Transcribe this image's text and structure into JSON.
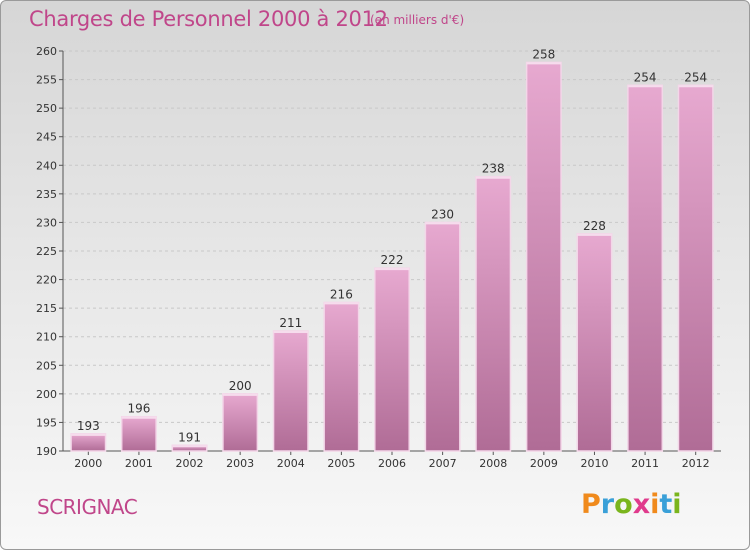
{
  "title": "Charges de Personnel 2000 à 2012",
  "subtitle": "(en milliers d'€)",
  "commune": "SCRIGNAC",
  "logo": {
    "letters": [
      "P",
      "r",
      "o",
      "x",
      "i",
      "t",
      "i"
    ],
    "colors": [
      "#f08a1c",
      "#3aa0d8",
      "#7ab51d",
      "#e03a8c",
      "#f08a1c",
      "#3aa0d8",
      "#7ab51d"
    ]
  },
  "colors": {
    "bar": "#d58fba",
    "accent": "#c0468a"
  },
  "chart_data": {
    "type": "bar",
    "title": "Charges de Personnel 2000 à 2012",
    "subtitle": "(en milliers d'€)",
    "categories": [
      "2000",
      "2001",
      "2002",
      "2003",
      "2004",
      "2005",
      "2006",
      "2007",
      "2008",
      "2009",
      "2010",
      "2011",
      "2012"
    ],
    "values": [
      193,
      196,
      191,
      200,
      211,
      216,
      222,
      230,
      238,
      258,
      228,
      254,
      254
    ],
    "ylim": [
      190,
      260
    ],
    "yticks": [
      190,
      195,
      200,
      205,
      210,
      215,
      220,
      225,
      230,
      235,
      240,
      245,
      250,
      255,
      260
    ],
    "grid": true,
    "xlabel": "",
    "ylabel": ""
  }
}
